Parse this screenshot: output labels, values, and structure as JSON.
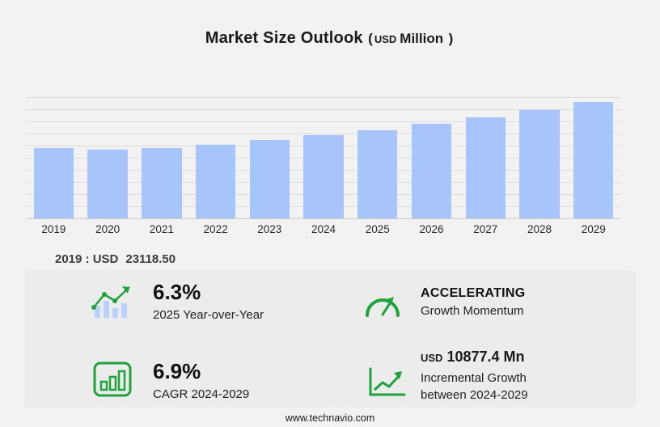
{
  "title": {
    "main": "Market Size Outlook",
    "paren_open": "(",
    "currency": "USD",
    "unit": "Million",
    "paren_close": ")"
  },
  "chart_data": {
    "type": "bar",
    "title": "Market Size Outlook (USD Million)",
    "categories": [
      "2019",
      "2020",
      "2021",
      "2022",
      "2023",
      "2024",
      "2025",
      "2026",
      "2027",
      "2028",
      "2029"
    ],
    "values": [
      23118.5,
      22600,
      23250,
      24400,
      25750,
      27450,
      29180,
      31150,
      33350,
      35800,
      38330
    ],
    "xlabel": "",
    "ylabel": "USD Million",
    "ylim": [
      0,
      40000
    ],
    "grid": true,
    "legend": false,
    "bar_color": "#a7c5fb"
  },
  "base_year": {
    "prefix": "2019 : USD",
    "value": "23118.50"
  },
  "stats": {
    "yoy": {
      "value": "6.3%",
      "label": "2025 Year-over-Year"
    },
    "momentum": {
      "value": "ACCELERATING",
      "label": "Growth Momentum"
    },
    "cagr": {
      "value": "6.9%",
      "label": "CAGR 2024-2029"
    },
    "incremental": {
      "currency": "USD",
      "value": "10877.4 Mn",
      "label_line1": "Incremental Growth",
      "label_line2": "between 2024-2029"
    }
  },
  "footer": {
    "url": "www.technavio.com"
  },
  "colors": {
    "bar": "#a7c5fb",
    "accent_green": "#1ea23b",
    "background": "#f2f2f2"
  }
}
